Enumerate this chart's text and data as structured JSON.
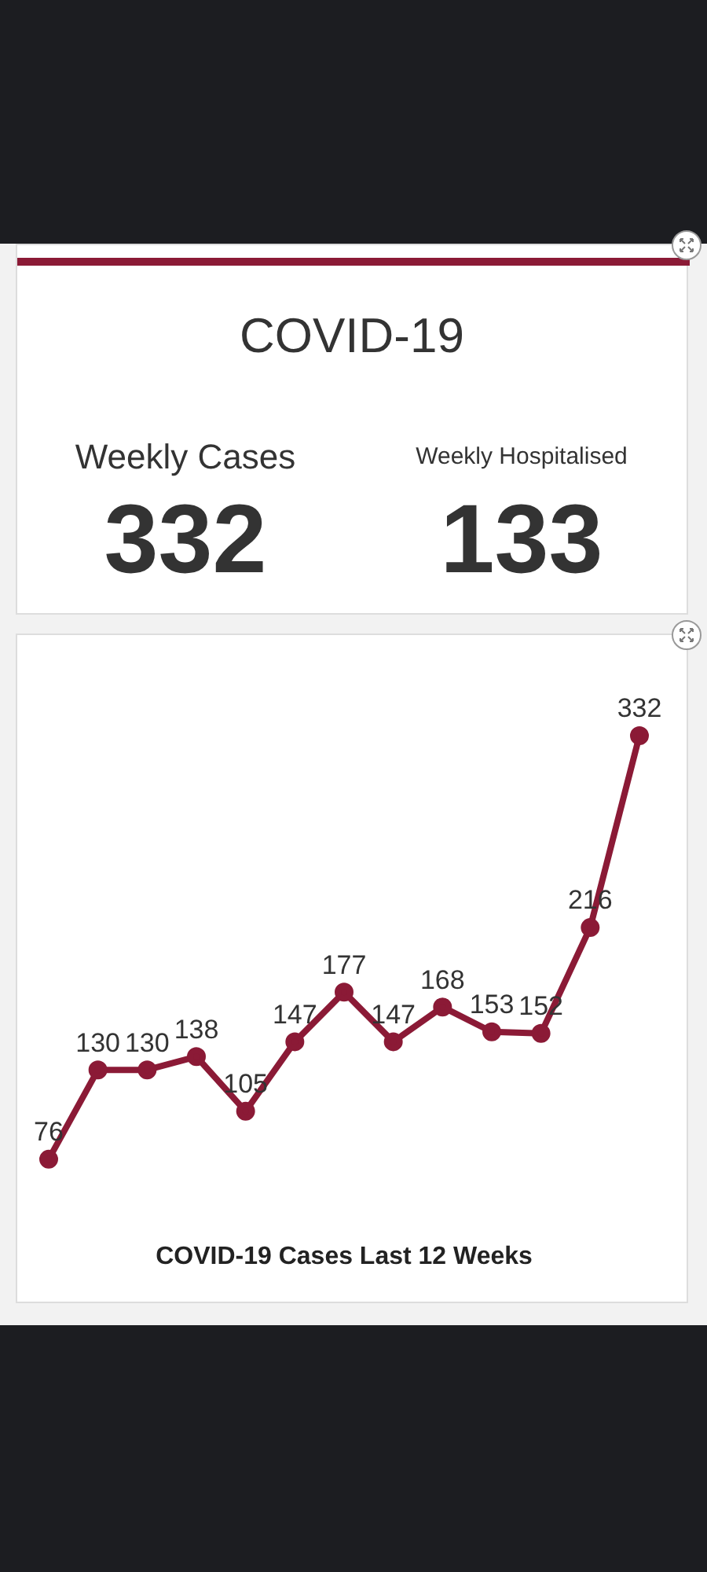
{
  "chart_data": [
    {
      "type": "other",
      "title": "COVID-19",
      "categories": [
        "Weekly Cases",
        "Weekly Hospitalised"
      ],
      "values": [
        332,
        133
      ],
      "data_labels": true
    },
    {
      "type": "line",
      "title": "COVID-19 Cases Last 12 Weeks",
      "categories": [
        null,
        null,
        null,
        null,
        null,
        null,
        null,
        null,
        null,
        null,
        null,
        null,
        null
      ],
      "series": [
        {
          "color": "#8b1a36",
          "values": [
            76,
            130,
            130,
            138,
            105,
            147,
            177,
            147,
            168,
            153,
            152,
            216,
            332
          ]
        }
      ],
      "data_labels": true,
      "marker": "circle"
    }
  ]
}
